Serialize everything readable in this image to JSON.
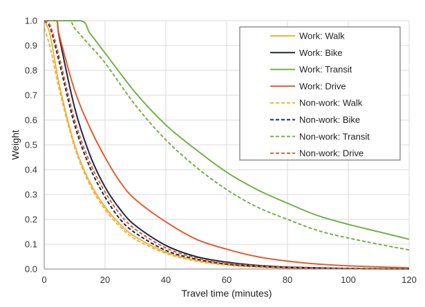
{
  "chart_data": {
    "type": "line",
    "xlabel": "Travel time (minutes)",
    "ylabel": "Weight",
    "xlim": [
      0,
      120
    ],
    "ylim": [
      0,
      1.0
    ],
    "x_ticks": [
      0,
      20,
      40,
      60,
      80,
      100,
      120
    ],
    "y_ticks": [
      0.0,
      0.1,
      0.2,
      0.3,
      0.4,
      0.5,
      0.6,
      0.7,
      0.8,
      0.9,
      1.0
    ],
    "x_tick_labels": [
      "0",
      "20",
      "40",
      "60",
      "80",
      "100",
      "120"
    ],
    "y_tick_labels": [
      "0.0",
      "0.1",
      "0.2",
      "0.3",
      "0.4",
      "0.5",
      "0.6",
      "0.7",
      "0.8",
      "0.9",
      "1.0"
    ],
    "grid": true,
    "legend_position": "top-right",
    "series": [
      {
        "name": "Work: Walk",
        "color": "#f0b23a",
        "dash": "solid",
        "x": [
          0,
          2,
          5,
          10,
          15,
          20,
          25,
          30,
          40,
          50,
          60,
          70,
          80,
          100,
          120
        ],
        "y": [
          1.0,
          0.94,
          0.74,
          0.5,
          0.35,
          0.25,
          0.18,
          0.13,
          0.068,
          0.035,
          0.018,
          0.01,
          0.005,
          0.0015,
          0.0005
        ]
      },
      {
        "name": "Work: Bike",
        "color": "#1a2744",
        "dash": "solid",
        "x": [
          0,
          4,
          5,
          10,
          15,
          20,
          25,
          30,
          40,
          50,
          60,
          70,
          80,
          100,
          120
        ],
        "y": [
          1.0,
          1.0,
          0.93,
          0.65,
          0.46,
          0.33,
          0.24,
          0.175,
          0.095,
          0.05,
          0.028,
          0.015,
          0.008,
          0.0025,
          0.0008
        ]
      },
      {
        "name": "Work: Transit",
        "color": "#72b043",
        "dash": "solid",
        "x": [
          0,
          12,
          15,
          20,
          30,
          40,
          50,
          60,
          70,
          80,
          90,
          100,
          110,
          120
        ],
        "y": [
          1.0,
          1.0,
          0.95,
          0.87,
          0.71,
          0.58,
          0.48,
          0.39,
          0.32,
          0.265,
          0.215,
          0.18,
          0.15,
          0.12
        ]
      },
      {
        "name": "Work: Drive",
        "color": "#e35b2f",
        "dash": "solid",
        "x": [
          0,
          4,
          5,
          10,
          15,
          20,
          25,
          30,
          40,
          50,
          60,
          70,
          80,
          90,
          100,
          120
        ],
        "y": [
          1.0,
          1.0,
          0.94,
          0.72,
          0.57,
          0.45,
          0.35,
          0.28,
          0.19,
          0.12,
          0.08,
          0.05,
          0.032,
          0.02,
          0.013,
          0.005
        ]
      },
      {
        "name": "Non-work: Walk",
        "color": "#f0b23a",
        "dash": "dashed",
        "x": [
          0,
          2,
          5,
          10,
          15,
          20,
          25,
          30,
          40,
          50,
          60,
          70,
          80,
          100,
          120
        ],
        "y": [
          0.97,
          0.89,
          0.72,
          0.49,
          0.34,
          0.24,
          0.17,
          0.12,
          0.063,
          0.032,
          0.016,
          0.008,
          0.004,
          0.001,
          0.0003
        ]
      },
      {
        "name": "Non-work: Bike",
        "color": "#1a2744",
        "dash": "dashed",
        "x": [
          0,
          2,
          5,
          10,
          15,
          20,
          25,
          30,
          40,
          50,
          60,
          70,
          80,
          100,
          120
        ],
        "y": [
          1.0,
          0.97,
          0.83,
          0.58,
          0.41,
          0.29,
          0.2,
          0.145,
          0.075,
          0.04,
          0.02,
          0.011,
          0.006,
          0.0017,
          0.0005
        ]
      },
      {
        "name": "Non-work: Transit",
        "color": "#72b043",
        "dash": "dashed",
        "x": [
          0,
          8,
          10,
          15,
          20,
          30,
          40,
          50,
          60,
          70,
          80,
          90,
          100,
          110,
          120
        ],
        "y": [
          1.0,
          1.0,
          0.97,
          0.9,
          0.83,
          0.66,
          0.52,
          0.41,
          0.32,
          0.25,
          0.2,
          0.155,
          0.125,
          0.1,
          0.077
        ]
      },
      {
        "name": "Non-work: Drive",
        "color": "#e35b2f",
        "dash": "dashed",
        "x": [
          0,
          2,
          5,
          10,
          15,
          20,
          25,
          30,
          40,
          50,
          60,
          70,
          80,
          100,
          120
        ],
        "y": [
          1.0,
          0.98,
          0.85,
          0.6,
          0.43,
          0.31,
          0.22,
          0.16,
          0.085,
          0.045,
          0.024,
          0.013,
          0.007,
          0.002,
          0.0006
        ]
      }
    ]
  }
}
